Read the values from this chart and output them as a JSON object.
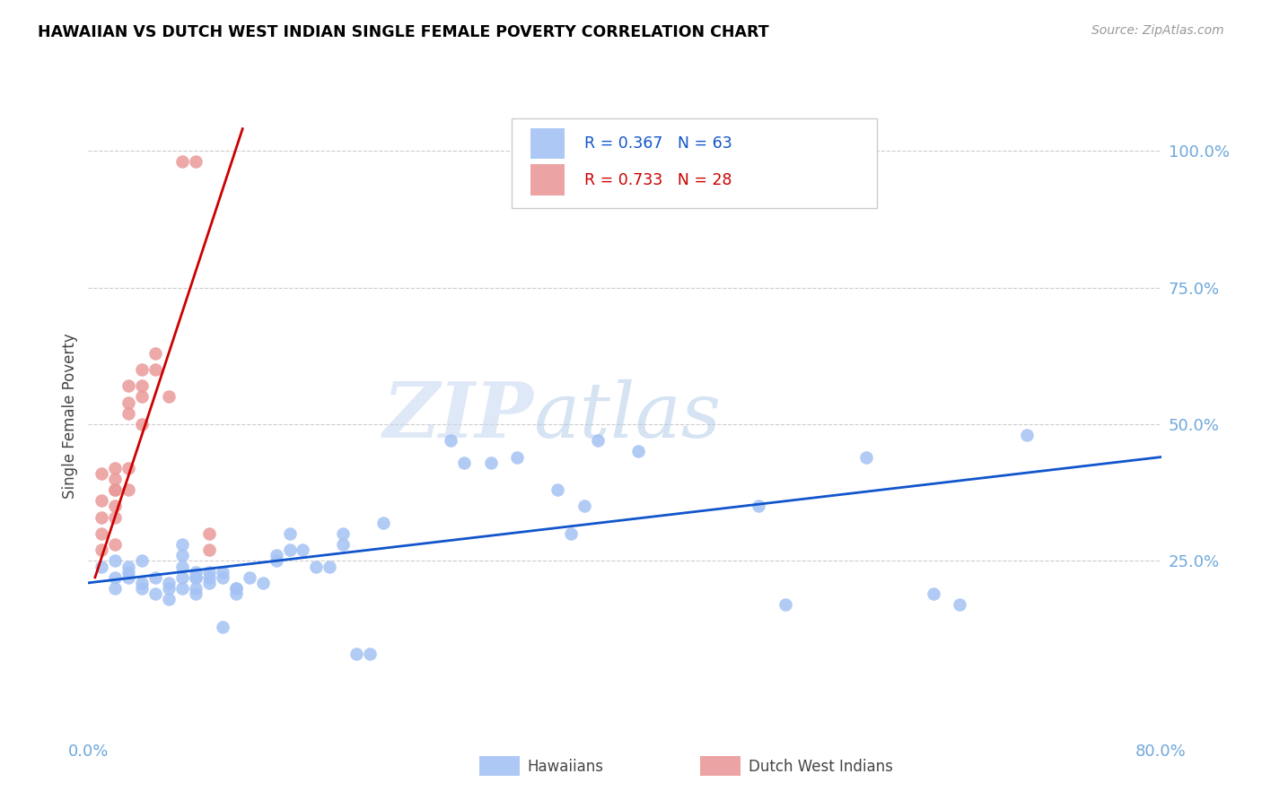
{
  "title": "HAWAIIAN VS DUTCH WEST INDIAN SINGLE FEMALE POVERTY CORRELATION CHART",
  "source": "Source: ZipAtlas.com",
  "ylabel": "Single Female Poverty",
  "ytick_labels": [
    "100.0%",
    "75.0%",
    "50.0%",
    "25.0%"
  ],
  "ytick_values": [
    1.0,
    0.75,
    0.5,
    0.25
  ],
  "xlim": [
    0.0,
    0.8
  ],
  "ylim": [
    -0.07,
    1.1
  ],
  "legend_label1": "Hawaiians",
  "legend_label2": "Dutch West Indians",
  "r1": 0.367,
  "n1": 63,
  "r2": 0.733,
  "n2": 28,
  "blue_color": "#a4c2f4",
  "pink_color": "#ea9999",
  "blue_line_color": "#1155cc",
  "pink_line_color": "#cc0000",
  "blue_scatter": [
    [
      0.02,
      0.22
    ],
    [
      0.01,
      0.24
    ],
    [
      0.02,
      0.2
    ],
    [
      0.03,
      0.23
    ],
    [
      0.02,
      0.25
    ],
    [
      0.03,
      0.22
    ],
    [
      0.04,
      0.21
    ],
    [
      0.04,
      0.25
    ],
    [
      0.03,
      0.24
    ],
    [
      0.04,
      0.2
    ],
    [
      0.05,
      0.19
    ],
    [
      0.05,
      0.22
    ],
    [
      0.06,
      0.21
    ],
    [
      0.06,
      0.2
    ],
    [
      0.06,
      0.18
    ],
    [
      0.07,
      0.24
    ],
    [
      0.07,
      0.22
    ],
    [
      0.07,
      0.2
    ],
    [
      0.07,
      0.28
    ],
    [
      0.07,
      0.26
    ],
    [
      0.08,
      0.23
    ],
    [
      0.08,
      0.22
    ],
    [
      0.08,
      0.2
    ],
    [
      0.08,
      0.19
    ],
    [
      0.08,
      0.22
    ],
    [
      0.09,
      0.23
    ],
    [
      0.09,
      0.21
    ],
    [
      0.09,
      0.22
    ],
    [
      0.1,
      0.23
    ],
    [
      0.1,
      0.22
    ],
    [
      0.1,
      0.13
    ],
    [
      0.11,
      0.2
    ],
    [
      0.11,
      0.19
    ],
    [
      0.11,
      0.2
    ],
    [
      0.12,
      0.22
    ],
    [
      0.13,
      0.21
    ],
    [
      0.14,
      0.25
    ],
    [
      0.14,
      0.26
    ],
    [
      0.15,
      0.27
    ],
    [
      0.15,
      0.3
    ],
    [
      0.16,
      0.27
    ],
    [
      0.17,
      0.24
    ],
    [
      0.18,
      0.24
    ],
    [
      0.19,
      0.3
    ],
    [
      0.19,
      0.28
    ],
    [
      0.2,
      0.08
    ],
    [
      0.21,
      0.08
    ],
    [
      0.22,
      0.32
    ],
    [
      0.27,
      0.47
    ],
    [
      0.28,
      0.43
    ],
    [
      0.3,
      0.43
    ],
    [
      0.32,
      0.44
    ],
    [
      0.35,
      0.38
    ],
    [
      0.36,
      0.3
    ],
    [
      0.37,
      0.35
    ],
    [
      0.38,
      0.47
    ],
    [
      0.41,
      0.45
    ],
    [
      0.5,
      0.35
    ],
    [
      0.52,
      0.17
    ],
    [
      0.58,
      0.44
    ],
    [
      0.63,
      0.19
    ],
    [
      0.65,
      0.17
    ],
    [
      0.7,
      0.48
    ]
  ],
  "pink_scatter": [
    [
      0.01,
      0.36
    ],
    [
      0.01,
      0.33
    ],
    [
      0.01,
      0.3
    ],
    [
      0.01,
      0.27
    ],
    [
      0.01,
      0.41
    ],
    [
      0.02,
      0.42
    ],
    [
      0.02,
      0.38
    ],
    [
      0.02,
      0.35
    ],
    [
      0.02,
      0.4
    ],
    [
      0.02,
      0.38
    ],
    [
      0.02,
      0.33
    ],
    [
      0.02,
      0.28
    ],
    [
      0.03,
      0.57
    ],
    [
      0.03,
      0.54
    ],
    [
      0.03,
      0.52
    ],
    [
      0.03,
      0.42
    ],
    [
      0.03,
      0.38
    ],
    [
      0.04,
      0.6
    ],
    [
      0.04,
      0.57
    ],
    [
      0.04,
      0.55
    ],
    [
      0.04,
      0.5
    ],
    [
      0.05,
      0.63
    ],
    [
      0.05,
      0.6
    ],
    [
      0.06,
      0.55
    ],
    [
      0.07,
      0.98
    ],
    [
      0.08,
      0.98
    ],
    [
      0.09,
      0.3
    ],
    [
      0.09,
      0.27
    ]
  ],
  "blue_line_x": [
    0.0,
    0.8
  ],
  "blue_line_y": [
    0.21,
    0.44
  ],
  "pink_line_x": [
    0.005,
    0.115
  ],
  "pink_line_y": [
    0.22,
    1.04
  ],
  "watermark_zip": "ZIP",
  "watermark_atlas": "atlas",
  "background_color": "#ffffff",
  "grid_color": "#cccccc",
  "tick_color": "#6fa8dc",
  "title_color": "#000000",
  "source_color": "#999999"
}
